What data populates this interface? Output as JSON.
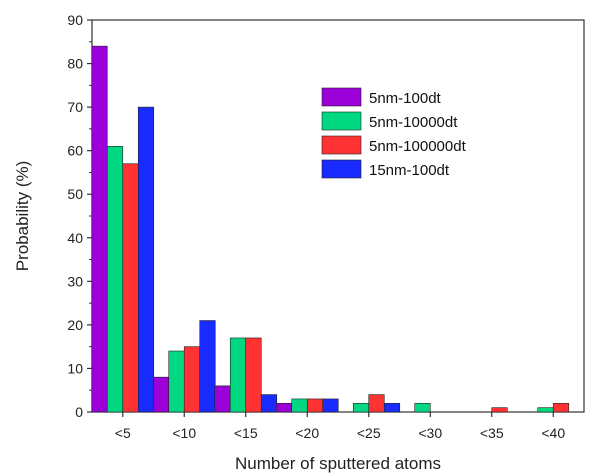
{
  "chart_data": {
    "type": "bar",
    "title": "",
    "xlabel": "Number of sputtered atoms",
    "ylabel": "Probability (%)",
    "ylim": [
      0,
      90
    ],
    "yticks": [
      0,
      10,
      20,
      30,
      40,
      50,
      60,
      70,
      80,
      90
    ],
    "categories": [
      "<5",
      "<10",
      "<15",
      "<20",
      "<25",
      "<30",
      "<35",
      "<40"
    ],
    "series": [
      {
        "name": "5nm-100dt",
        "color": "#9b00d9",
        "values": [
          84,
          8,
          6,
          2,
          0,
          0,
          0,
          0
        ]
      },
      {
        "name": "5nm-10000dt",
        "color": "#00d982",
        "values": [
          61,
          14,
          17,
          3,
          2,
          2,
          0,
          1
        ]
      },
      {
        "name": "5nm-100000dt",
        "color": "#ff3333",
        "values": [
          57,
          15,
          17,
          3,
          4,
          0,
          1,
          2
        ]
      },
      {
        "name": "15nm-100dt",
        "color": "#1a2bff",
        "values": [
          70,
          21,
          4,
          3,
          2,
          0,
          0,
          0
        ]
      }
    ],
    "legend_position": "top-right",
    "grid": false
  }
}
